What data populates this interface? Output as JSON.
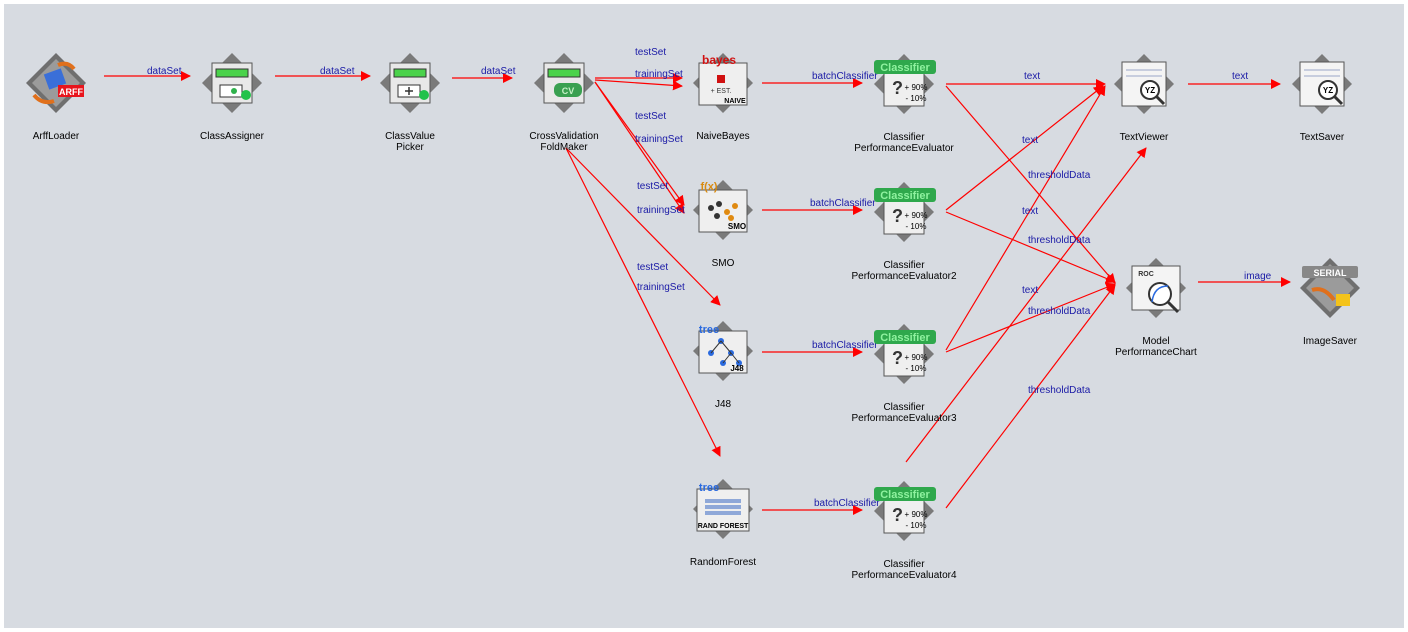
{
  "nodes": {
    "arff": {
      "label1": "ArffLoader",
      "label2": "",
      "badge": "ARFF"
    },
    "classassigner": {
      "label1": "ClassAssigner",
      "label2": ""
    },
    "classvaluepicker": {
      "label1": "ClassValue",
      "label2": "Picker"
    },
    "cvfoldmaker": {
      "label1": "CrossValidation",
      "label2": "FoldMaker",
      "badge": "CV"
    },
    "naivebayes": {
      "label1": "NaiveBayes",
      "label2": "",
      "badge_top": "bayes",
      "badge_bottom": "NAIVE",
      "est": "+ EST."
    },
    "smo": {
      "label1": "SMO",
      "label2": "",
      "badge_top": "f(x)",
      "badge_bottom": "SMO"
    },
    "j48": {
      "label1": "J48",
      "label2": "",
      "badge_top": "tree",
      "badge_bottom": "J48"
    },
    "randomforest": {
      "label1": "RandomForest",
      "label2": "",
      "badge_top": "tree",
      "badge_bottom": "RAND FOREST"
    },
    "cpe1": {
      "label1": "Classifier",
      "label2": "PerformanceEvaluator",
      "badge": "Classifier",
      "plus": "+ 90%",
      "minus": "- 10%"
    },
    "cpe2": {
      "label1": "Classifier",
      "label2": "PerformanceEvaluator2",
      "badge": "Classifier",
      "plus": "+ 90%",
      "minus": "- 10%"
    },
    "cpe3": {
      "label1": "Classifier",
      "label2": "PerformanceEvaluator3",
      "badge": "Classifier",
      "plus": "+ 90%",
      "minus": "- 10%"
    },
    "cpe4": {
      "label1": "Classifier",
      "label2": "PerformanceEvaluator4",
      "badge": "Classifier",
      "plus": "+ 90%",
      "minus": "- 10%"
    },
    "textviewer": {
      "label1": "TextViewer",
      "label2": "",
      "yz": "YZ"
    },
    "textsaver": {
      "label1": "TextSaver",
      "label2": "",
      "yz": "YZ"
    },
    "modelchart": {
      "label1": "Model",
      "label2": "PerformanceChart",
      "badge": "ROC"
    },
    "imagesaver": {
      "label1": "ImageSaver",
      "label2": "",
      "badge": "SERIAL"
    }
  },
  "edges": {
    "dataset": "dataSet",
    "testset": "testSet",
    "trainingset": "trainingSet",
    "batchclassifier": "batchClassifier",
    "text": "text",
    "thresholddata": "thresholdData",
    "image": "image"
  },
  "colors": {
    "canvas": "#d7dbe1",
    "edge": "#ff0000",
    "edge_label": "#1a1aa6",
    "classifier_badge": "#3ed66a"
  }
}
